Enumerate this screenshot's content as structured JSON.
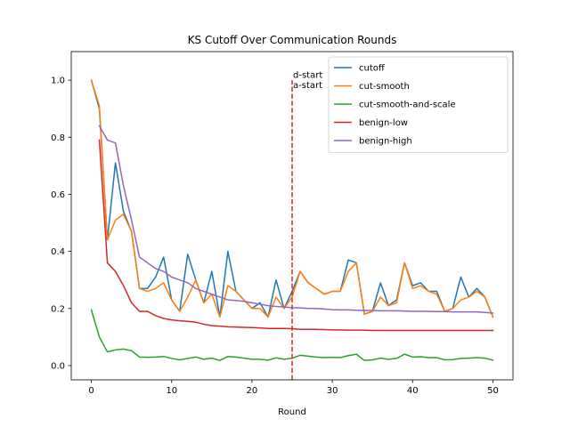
{
  "chart_data": {
    "type": "line",
    "title": "KS Cutoff Over Communication Rounds",
    "xlabel": "Round",
    "ylabel": "",
    "xlim": [
      -2.5,
      52.5
    ],
    "ylim": [
      -0.05,
      1.1
    ],
    "xticks": [
      0,
      10,
      20,
      30,
      40,
      50
    ],
    "yticks": [
      0.0,
      0.2,
      0.4,
      0.6,
      0.8,
      1.0
    ],
    "grid": false,
    "legend_position": "top-right",
    "annotations": [
      {
        "text": "d-start",
        "x": 25,
        "y": 1.04
      },
      {
        "text": "a-start",
        "x": 25,
        "y": 1.0
      }
    ],
    "vline": {
      "x": 25,
      "y_range": [
        -0.05,
        1.0
      ],
      "color": "#d62728",
      "style": "dashed"
    },
    "series": [
      {
        "name": "cutoff",
        "color": "#1f77b4",
        "x": [
          0,
          1,
          2,
          3,
          4,
          5,
          6,
          7,
          8,
          9,
          10,
          11,
          12,
          13,
          14,
          15,
          16,
          17,
          18,
          19,
          20,
          21,
          22,
          23,
          24,
          25,
          26,
          27,
          28,
          29,
          30,
          31,
          32,
          33,
          34,
          35,
          36,
          37,
          38,
          39,
          40,
          41,
          42,
          43,
          44,
          45,
          46,
          47,
          48,
          49,
          50
        ],
        "values": [
          1.0,
          0.9,
          0.44,
          0.71,
          0.54,
          0.47,
          0.27,
          0.27,
          0.31,
          0.38,
          0.23,
          0.19,
          0.39,
          0.3,
          0.22,
          0.33,
          0.17,
          0.4,
          0.26,
          0.23,
          0.2,
          0.22,
          0.17,
          0.3,
          0.2,
          0.26,
          0.33,
          0.29,
          0.27,
          0.25,
          0.26,
          0.26,
          0.37,
          0.36,
          0.18,
          0.19,
          0.29,
          0.21,
          0.23,
          0.36,
          0.28,
          0.29,
          0.26,
          0.26,
          0.19,
          0.2,
          0.31,
          0.24,
          0.27,
          0.24,
          0.17
        ]
      },
      {
        "name": "cut-smooth",
        "color": "#ff7f0e",
        "x": [
          0,
          1,
          2,
          3,
          4,
          5,
          6,
          7,
          8,
          9,
          10,
          11,
          12,
          13,
          14,
          15,
          16,
          17,
          18,
          19,
          20,
          21,
          22,
          23,
          24,
          25,
          26,
          27,
          28,
          29,
          30,
          31,
          32,
          33,
          34,
          35,
          36,
          37,
          38,
          39,
          40,
          41,
          42,
          43,
          44,
          45,
          46,
          47,
          48,
          49,
          50
        ],
        "values": [
          1.0,
          0.91,
          0.44,
          0.51,
          0.53,
          0.47,
          0.27,
          0.26,
          0.27,
          0.29,
          0.23,
          0.19,
          0.24,
          0.3,
          0.22,
          0.25,
          0.17,
          0.28,
          0.26,
          0.23,
          0.2,
          0.2,
          0.17,
          0.24,
          0.2,
          0.24,
          0.33,
          0.29,
          0.27,
          0.25,
          0.26,
          0.26,
          0.33,
          0.36,
          0.18,
          0.19,
          0.24,
          0.21,
          0.22,
          0.36,
          0.27,
          0.28,
          0.26,
          0.25,
          0.19,
          0.2,
          0.23,
          0.24,
          0.26,
          0.24,
          0.17
        ]
      },
      {
        "name": "cut-smooth-and-scale",
        "color": "#2ca02c",
        "x": [
          0,
          1,
          2,
          3,
          4,
          5,
          6,
          7,
          8,
          9,
          10,
          11,
          12,
          13,
          14,
          15,
          16,
          17,
          18,
          19,
          20,
          21,
          22,
          23,
          24,
          25,
          26,
          27,
          28,
          29,
          30,
          31,
          32,
          33,
          34,
          35,
          36,
          37,
          38,
          39,
          40,
          41,
          42,
          43,
          44,
          45,
          46,
          47,
          48,
          49,
          50
        ],
        "values": [
          0.195,
          0.1,
          0.048,
          0.055,
          0.058,
          0.052,
          0.03,
          0.029,
          0.03,
          0.032,
          0.025,
          0.02,
          0.025,
          0.03,
          0.022,
          0.026,
          0.018,
          0.032,
          0.03,
          0.026,
          0.022,
          0.022,
          0.019,
          0.027,
          0.022,
          0.026,
          0.036,
          0.033,
          0.03,
          0.028,
          0.029,
          0.028,
          0.035,
          0.04,
          0.018,
          0.02,
          0.026,
          0.022,
          0.025,
          0.04,
          0.03,
          0.031,
          0.028,
          0.028,
          0.02,
          0.021,
          0.025,
          0.026,
          0.028,
          0.026,
          0.019
        ]
      },
      {
        "name": "benign-low",
        "color": "#d62728",
        "x": [
          1,
          2,
          3,
          4,
          5,
          6,
          7,
          8,
          9,
          10,
          11,
          12,
          13,
          14,
          15,
          16,
          17,
          18,
          19,
          20,
          21,
          22,
          23,
          24,
          25,
          26,
          27,
          28,
          29,
          30,
          31,
          32,
          33,
          34,
          35,
          36,
          37,
          38,
          39,
          40,
          41,
          42,
          43,
          44,
          45,
          46,
          47,
          48,
          49,
          50
        ],
        "values": [
          0.79,
          0.36,
          0.33,
          0.28,
          0.22,
          0.19,
          0.19,
          0.175,
          0.165,
          0.16,
          0.157,
          0.155,
          0.152,
          0.145,
          0.14,
          0.138,
          0.136,
          0.135,
          0.134,
          0.133,
          0.132,
          0.13,
          0.13,
          0.13,
          0.129,
          0.127,
          0.127,
          0.127,
          0.126,
          0.125,
          0.125,
          0.124,
          0.124,
          0.124,
          0.123,
          0.123,
          0.123,
          0.123,
          0.123,
          0.123,
          0.123,
          0.123,
          0.123,
          0.123,
          0.123,
          0.123,
          0.123,
          0.123,
          0.123,
          0.123
        ]
      },
      {
        "name": "benign-high",
        "color": "#9467bd",
        "x": [
          1,
          2,
          3,
          4,
          5,
          6,
          7,
          8,
          9,
          10,
          11,
          12,
          13,
          14,
          15,
          16,
          17,
          18,
          19,
          20,
          21,
          22,
          23,
          24,
          25,
          26,
          27,
          28,
          29,
          30,
          31,
          32,
          33,
          34,
          35,
          36,
          37,
          38,
          39,
          40,
          41,
          42,
          43,
          44,
          45,
          46,
          47,
          48,
          49,
          50
        ],
        "values": [
          0.84,
          0.79,
          0.78,
          0.63,
          0.51,
          0.38,
          0.36,
          0.34,
          0.33,
          0.31,
          0.3,
          0.29,
          0.27,
          0.26,
          0.25,
          0.24,
          0.23,
          0.228,
          0.225,
          0.22,
          0.215,
          0.21,
          0.207,
          0.205,
          0.203,
          0.202,
          0.2,
          0.2,
          0.198,
          0.196,
          0.195,
          0.195,
          0.194,
          0.193,
          0.193,
          0.192,
          0.192,
          0.192,
          0.191,
          0.19,
          0.19,
          0.19,
          0.189,
          0.189,
          0.188,
          0.188,
          0.188,
          0.188,
          0.186,
          0.184
        ]
      }
    ]
  }
}
